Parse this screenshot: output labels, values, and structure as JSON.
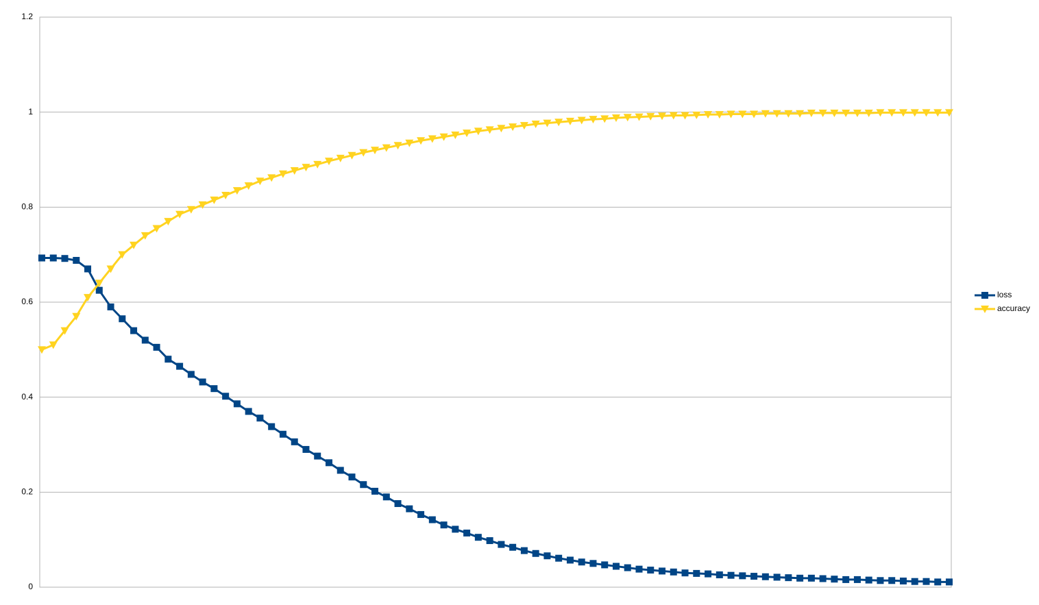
{
  "chart_data": {
    "type": "line",
    "series": [
      {
        "name": "loss",
        "color": "#004586",
        "marker": "square",
        "values": [
          0.693,
          0.693,
          0.692,
          0.688,
          0.67,
          0.625,
          0.59,
          0.565,
          0.54,
          0.52,
          0.505,
          0.48,
          0.465,
          0.448,
          0.432,
          0.418,
          0.402,
          0.386,
          0.37,
          0.356,
          0.338,
          0.322,
          0.306,
          0.29,
          0.276,
          0.262,
          0.246,
          0.232,
          0.216,
          0.202,
          0.19,
          0.176,
          0.165,
          0.153,
          0.142,
          0.131,
          0.122,
          0.114,
          0.105,
          0.098,
          0.09,
          0.084,
          0.077,
          0.071,
          0.066,
          0.061,
          0.057,
          0.053,
          0.05,
          0.047,
          0.044,
          0.041,
          0.038,
          0.036,
          0.034,
          0.032,
          0.03,
          0.029,
          0.028,
          0.026,
          0.025,
          0.024,
          0.023,
          0.022,
          0.021,
          0.02,
          0.019,
          0.019,
          0.018,
          0.017,
          0.016,
          0.016,
          0.015,
          0.014,
          0.014,
          0.013,
          0.012,
          0.012,
          0.011,
          0.011
        ]
      },
      {
        "name": "accuracy",
        "color": "#ffd320",
        "marker": "triangle-down",
        "values": [
          0.5,
          0.51,
          0.54,
          0.57,
          0.61,
          0.64,
          0.67,
          0.7,
          0.72,
          0.74,
          0.755,
          0.77,
          0.785,
          0.795,
          0.805,
          0.815,
          0.825,
          0.835,
          0.845,
          0.855,
          0.862,
          0.87,
          0.877,
          0.884,
          0.89,
          0.897,
          0.903,
          0.909,
          0.915,
          0.92,
          0.925,
          0.93,
          0.935,
          0.94,
          0.944,
          0.948,
          0.952,
          0.956,
          0.96,
          0.963,
          0.966,
          0.969,
          0.972,
          0.975,
          0.977,
          0.979,
          0.981,
          0.983,
          0.985,
          0.986,
          0.988,
          0.989,
          0.99,
          0.991,
          0.992,
          0.993,
          0.993,
          0.994,
          0.995,
          0.995,
          0.996,
          0.996,
          0.996,
          0.997,
          0.997,
          0.997,
          0.997,
          0.998,
          0.998,
          0.998,
          0.998,
          0.998,
          0.998,
          0.999,
          0.999,
          0.999,
          0.999,
          0.999,
          0.999,
          0.999
        ]
      }
    ],
    "ylim": [
      0,
      1.2
    ],
    "yticks": [
      0,
      0.2,
      0.4,
      0.6,
      0.8,
      1,
      1.2
    ],
    "grid": true,
    "legend": "right"
  }
}
